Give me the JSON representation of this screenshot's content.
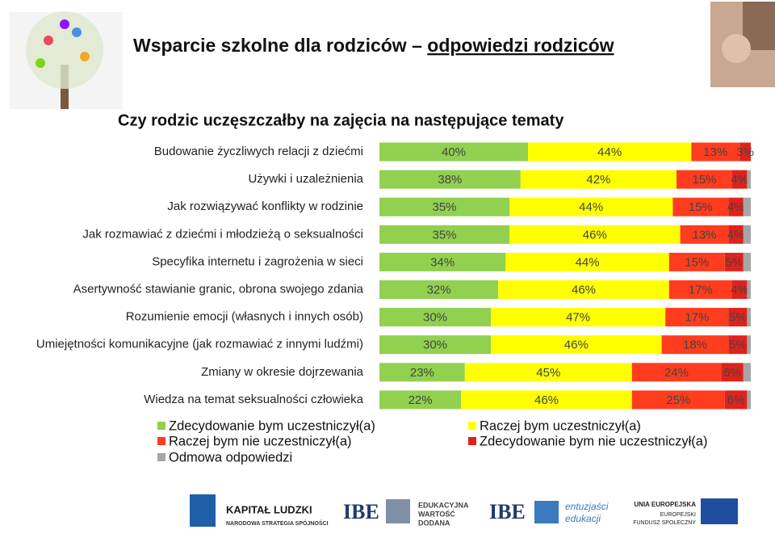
{
  "slide": {
    "title": "Wsparcie szkolne dla rodziców –",
    "title_link": "odpowiedzi rodziców"
  },
  "chart_data": {
    "type": "stacked_barh",
    "title": "Czy rodzic uczęszczałby na zajęcia na następujące tematy",
    "categories": [
      "Budowanie życzliwych relacji z dziećmi",
      "Używki i uzależnienia",
      "Jak rozwiązywać konflikty w rodzinie",
      "Jak rozmawiać z dziećmi i młodzieżą o seksualności",
      "Specyfika internetu i zagrożenia w sieci",
      "Asertywność  stawianie granic, obrona swojego zdania",
      "Rozumienie emocji (własnych i innych osób)",
      "Umiejętności komunikacyjne (jak rozmawiać z innymi ludźmi)",
      "Zmiany w okresie dojrzewania",
      "Wiedza na temat seksualności człowieka"
    ],
    "xlim": [
      0,
      100
    ],
    "series": [
      {
        "name": "Zdecydowanie bym uczestniczył(a)",
        "color": "#92d050",
        "values": [
          40,
          38,
          35,
          35,
          34,
          32,
          30,
          30,
          23,
          22
        ],
        "value_labels": [
          "40%",
          "38%",
          "35%",
          "35%",
          "34%",
          "32%",
          "30%",
          "30%",
          "23%",
          "22%"
        ]
      },
      {
        "name": "Raczej bym uczestniczył(a)",
        "color": "#ffff00",
        "values": [
          44,
          42,
          44,
          46,
          44,
          46,
          47,
          46,
          45,
          46
        ],
        "value_labels": [
          "44%",
          "42%",
          "44%",
          "46%",
          "44%",
          "46%",
          "47%",
          "46%",
          "45%",
          "46%"
        ]
      },
      {
        "name": "Raczej bym nie uczestniczył(a)",
        "color": "#ff3c1e",
        "values": [
          13,
          15,
          15,
          13,
          15,
          17,
          17,
          18,
          24,
          25
        ],
        "value_labels": [
          "13%",
          "15%",
          "15%",
          "13%",
          "15%",
          "17%",
          "17%",
          "18%",
          "24%",
          "25%"
        ]
      },
      {
        "name": "Zdecydowanie bym nie uczestniczył(a)",
        "color": "#e0221c",
        "values": [
          3,
          4,
          4,
          4,
          5,
          4,
          5,
          5,
          6,
          6
        ],
        "value_labels": [
          "3%",
          "4%",
          "4%",
          "4%",
          "5%",
          "4%",
          "5%",
          "5%",
          "6%",
          "6%"
        ]
      },
      {
        "name": "Odmowa odpowiedzi",
        "color": "#a6a6a6",
        "values": [
          0,
          1,
          2,
          2,
          2,
          1,
          1,
          1,
          2,
          1
        ]
      }
    ]
  },
  "footer_logos": [
    "KAPITAŁ LUDZKI",
    "NARODOWA STRATEGIA SPÓJNOŚCI",
    "IBE",
    "EDUKACYJNA",
    "WARTOŚĆ",
    "DODANA",
    "IBE",
    "entuzjaści",
    "edukacji",
    "UNIA EUROPEJSKA",
    "EUROPEJSKI",
    "FUNDUSZ SPOŁECZNY"
  ]
}
